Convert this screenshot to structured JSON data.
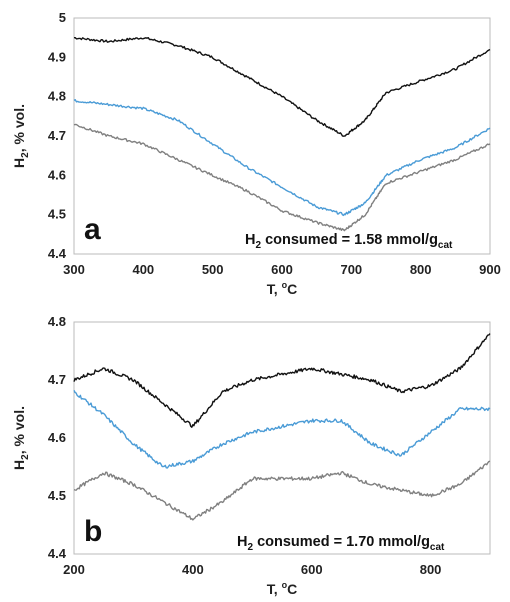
{
  "chart_data": [
    {
      "type": "line",
      "panel_label": "a",
      "xlabel_prefix": "T, ",
      "xlabel_degree": "o",
      "xlabel_suffix": "C",
      "ylabel_main": "H",
      "ylabel_sub": "2",
      "ylabel_rest": ", % vol.",
      "xlim": [
        300,
        900
      ],
      "ylim": [
        4.4,
        5.0
      ],
      "xticks": [
        "300",
        "400",
        "500",
        "600",
        "700",
        "800",
        "900"
      ],
      "yticks": [
        "4.4",
        "4.5",
        "4.6",
        "4.7",
        "4.8",
        "4.9",
        "5"
      ],
      "annotation": {
        "prefix": "H",
        "prefix_sub": "2",
        "text": " consumed = 1.58 mmol/g",
        "unit_sub": "cat"
      },
      "grid": false,
      "series": [
        {
          "color": "#111111",
          "x": [
            300,
            350,
            400,
            450,
            500,
            550,
            600,
            650,
            690,
            720,
            750,
            800,
            850,
            900
          ],
          "values": [
            4.95,
            4.94,
            4.95,
            4.93,
            4.9,
            4.85,
            4.8,
            4.74,
            4.7,
            4.74,
            4.81,
            4.84,
            4.87,
            4.92
          ]
        },
        {
          "color": "#4a9bd6",
          "x": [
            300,
            350,
            400,
            450,
            500,
            550,
            600,
            650,
            690,
            720,
            750,
            800,
            850,
            900
          ],
          "values": [
            4.79,
            4.78,
            4.77,
            4.74,
            4.68,
            4.62,
            4.57,
            4.52,
            4.5,
            4.53,
            4.6,
            4.64,
            4.67,
            4.72
          ]
        },
        {
          "color": "#808080",
          "x": [
            300,
            350,
            400,
            450,
            500,
            550,
            600,
            650,
            690,
            720,
            750,
            800,
            850,
            900
          ],
          "values": [
            4.73,
            4.7,
            4.68,
            4.64,
            4.6,
            4.56,
            4.51,
            4.48,
            4.46,
            4.5,
            4.58,
            4.61,
            4.64,
            4.68
          ]
        }
      ]
    },
    {
      "type": "line",
      "panel_label": "b",
      "xlabel_prefix": "T, ",
      "xlabel_degree": "o",
      "xlabel_suffix": "C",
      "ylabel_main": "H",
      "ylabel_sub": "2",
      "ylabel_rest": ", % vol.",
      "xlim": [
        200,
        900
      ],
      "ylim": [
        4.4,
        4.8
      ],
      "xticks": [
        "200",
        "400",
        "600",
        "800"
      ],
      "xtick_values": [
        200,
        400,
        600,
        800
      ],
      "yticks": [
        "4.4",
        "4.5",
        "4.6",
        "4.7",
        "4.8"
      ],
      "annotation": {
        "prefix": "H",
        "prefix_sub": "2",
        "text": " consumed = 1.70 mmol/g",
        "unit_sub": "cat"
      },
      "grid": false,
      "series": [
        {
          "color": "#111111",
          "x": [
            200,
            250,
            300,
            350,
            400,
            450,
            500,
            550,
            600,
            650,
            700,
            750,
            800,
            850,
            900
          ],
          "values": [
            4.7,
            4.72,
            4.7,
            4.66,
            4.62,
            4.68,
            4.7,
            4.71,
            4.72,
            4.71,
            4.7,
            4.68,
            4.69,
            4.72,
            4.78
          ]
        },
        {
          "color": "#4a9bd6",
          "x": [
            200,
            250,
            300,
            350,
            400,
            450,
            500,
            550,
            600,
            650,
            700,
            750,
            800,
            850,
            900
          ],
          "values": [
            4.68,
            4.64,
            4.59,
            4.55,
            4.56,
            4.59,
            4.61,
            4.62,
            4.63,
            4.63,
            4.59,
            4.57,
            4.61,
            4.65,
            4.65
          ]
        },
        {
          "color": "#808080",
          "x": [
            200,
            250,
            300,
            350,
            400,
            450,
            500,
            550,
            600,
            650,
            700,
            750,
            800,
            850,
            900
          ],
          "values": [
            4.51,
            4.54,
            4.52,
            4.49,
            4.46,
            4.49,
            4.53,
            4.53,
            4.53,
            4.54,
            4.52,
            4.51,
            4.5,
            4.52,
            4.56
          ]
        }
      ]
    }
  ]
}
